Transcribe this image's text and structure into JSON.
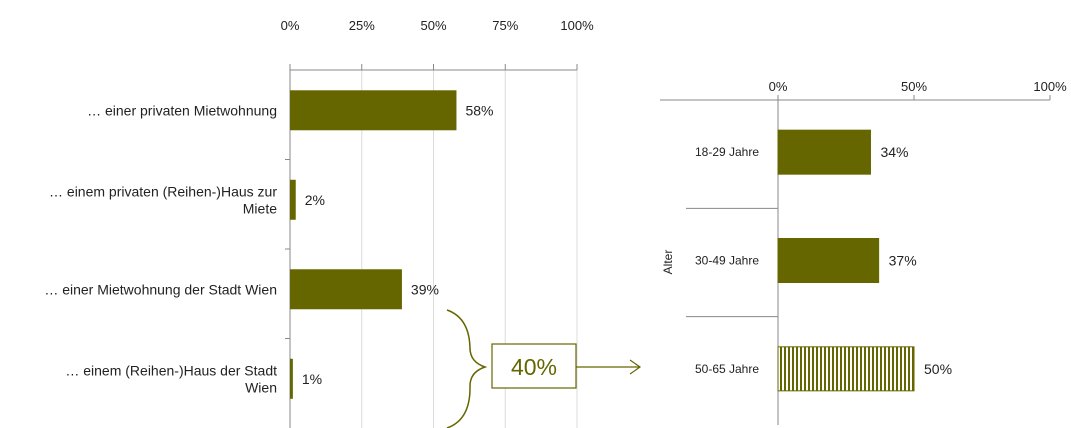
{
  "chart_data": [
    {
      "type": "bar",
      "orientation": "horizontal",
      "categories": [
        [
          "… einer privaten Mietwohnung"
        ],
        [
          "… einem privaten (Reihen-)Haus zur",
          "Miete"
        ],
        [
          "… einer Mietwohnung der Stadt Wien"
        ],
        [
          "… einem (Reihen-)Haus der Stadt",
          "Wien"
        ]
      ],
      "values": [
        58,
        2,
        39,
        1
      ],
      "value_labels": [
        "58%",
        "2%",
        "39%",
        "1%"
      ],
      "ticks": [
        "0%",
        "25%",
        "50%",
        "75%",
        "100%"
      ],
      "xlim": [
        0,
        100
      ],
      "grid": true,
      "color": "#666600"
    },
    {
      "type": "bar",
      "orientation": "horizontal",
      "axis_title": "Alter",
      "categories": [
        "18-29 Jahre",
        "30-49 Jahre",
        "50-65 Jahre"
      ],
      "values": [
        34,
        37,
        50
      ],
      "value_labels": [
        "34%",
        "37%",
        "50%"
      ],
      "patterns": [
        "solid",
        "solid",
        "vertical-stripes"
      ],
      "ticks": [
        "0%",
        "50%",
        "100%"
      ],
      "xlim": [
        0,
        100
      ],
      "grid": false,
      "color": "#666600"
    }
  ],
  "callout": {
    "label": "40%"
  }
}
